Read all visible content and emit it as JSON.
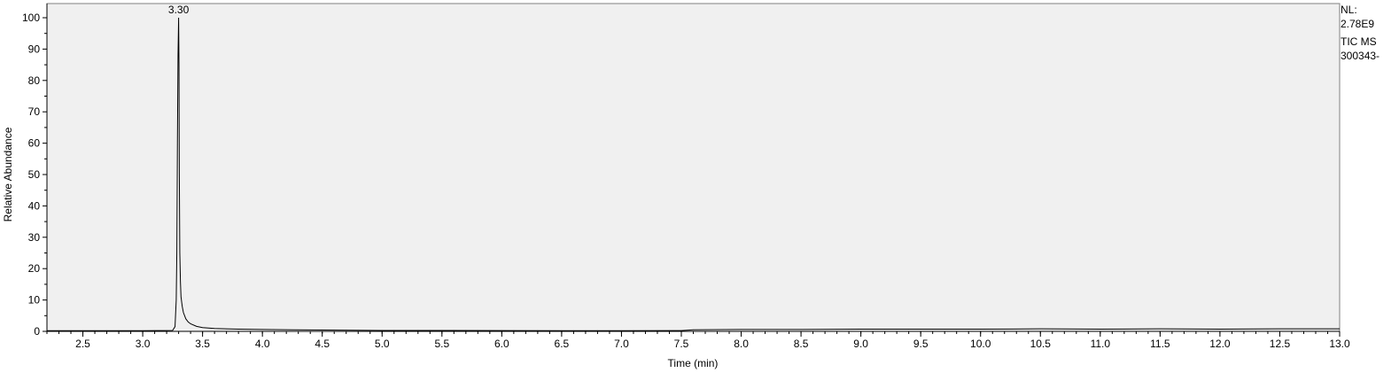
{
  "chart_data": {
    "type": "line",
    "xlabel": "Time (min)",
    "ylabel": "Relative Abundance",
    "xlim": [
      2.2,
      13.0
    ],
    "ylim": [
      0,
      100
    ],
    "x_ticks": [
      "2.5",
      "3.0",
      "3.5",
      "4.0",
      "4.5",
      "5.0",
      "5.5",
      "6.0",
      "6.5",
      "7.0",
      "7.5",
      "8.0",
      "8.5",
      "9.0",
      "9.5",
      "10.0",
      "10.5",
      "11.0",
      "11.5",
      "12.0",
      "12.5",
      "13.0"
    ],
    "y_ticks": [
      "0",
      "10",
      "20",
      "30",
      "40",
      "50",
      "60",
      "70",
      "80",
      "90",
      "100"
    ],
    "peak_label": {
      "text": "3.30",
      "x": 3.3,
      "y": 100
    },
    "grid": false,
    "background_color": "#f0f0f0",
    "line_color": "#000000",
    "series": [
      {
        "x": [
          2.2,
          3.0,
          3.25,
          3.27,
          3.28,
          3.285,
          3.29,
          3.295,
          3.3,
          3.303,
          3.306,
          3.31,
          3.315,
          3.32,
          3.33,
          3.34,
          3.36,
          3.38,
          3.4,
          3.45,
          3.5,
          3.6,
          3.8,
          4.0,
          4.25,
          5.0,
          6.0,
          7.0,
          7.5,
          7.6,
          8.0,
          8.5,
          9.0,
          9.5,
          10.0,
          10.5,
          11.0,
          11.5,
          12.0,
          12.5,
          13.0
        ],
        "y": [
          0.2,
          0.2,
          0.3,
          1.5,
          10,
          25,
          60,
          88,
          100,
          85,
          50,
          25,
          16,
          11,
          8,
          6,
          4,
          3,
          2.4,
          1.6,
          1.2,
          0.9,
          0.7,
          0.6,
          0.5,
          0.3,
          0.25,
          0.2,
          0.25,
          0.5,
          0.6,
          0.6,
          0.7,
          0.7,
          0.7,
          0.8,
          0.7,
          0.8,
          0.7,
          0.8,
          0.8
        ]
      }
    ]
  },
  "info": {
    "nl_label": "NL:",
    "nl_value": "2.78E9",
    "scan_type": "TIC  MS",
    "file_name": "300343-"
  }
}
